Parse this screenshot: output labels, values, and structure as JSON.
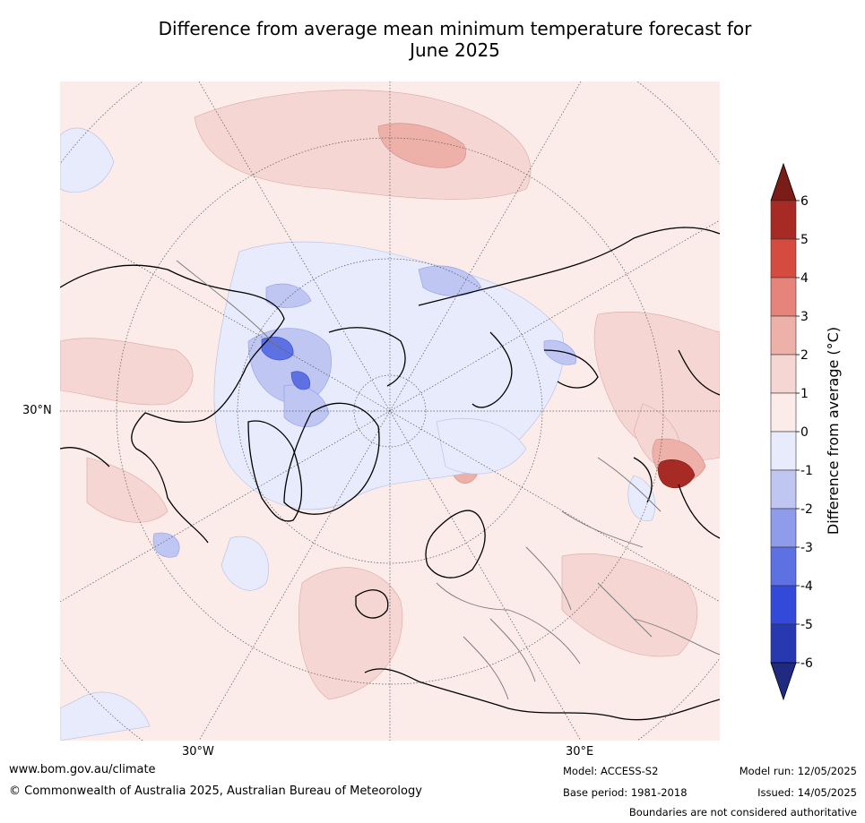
{
  "title_line1": "Difference from average mean minimum temperature forecast for",
  "title_line2": "June 2025",
  "ticks": {
    "lat_30n": "30°N",
    "lon_30w": "30°W",
    "lon_30e": "30°E"
  },
  "colorbar": {
    "label": "Difference from average (°C)",
    "tick_labels": [
      "6",
      "5",
      "4",
      "3",
      "2",
      "1",
      "0",
      "-1",
      "-2",
      "-3",
      "-4",
      "-5",
      "-6"
    ],
    "colors_warm": [
      "#7a1c17",
      "#a82a24",
      "#d64b40",
      "#e6847b",
      "#eeb1aa",
      "#f5d6d3",
      "#fbebe9"
    ],
    "colors_cool": [
      "#e8ebfb",
      "#bfc6f2",
      "#8f9cec",
      "#5d71e3",
      "#3249d9",
      "#2838b0",
      "#1f2a80"
    ]
  },
  "footer": {
    "website": "www.bom.gov.au/climate",
    "copyright": "© Commonwealth of Australia 2025, Australian Bureau of Meteorology",
    "model": "Model: ACCESS-S2",
    "base_period": "Base period: 1981-2018",
    "model_run": "Model run: 12/05/2025",
    "issued": "Issued: 14/05/2025",
    "disclaimer": "Boundaries are not considered authoritative"
  }
}
